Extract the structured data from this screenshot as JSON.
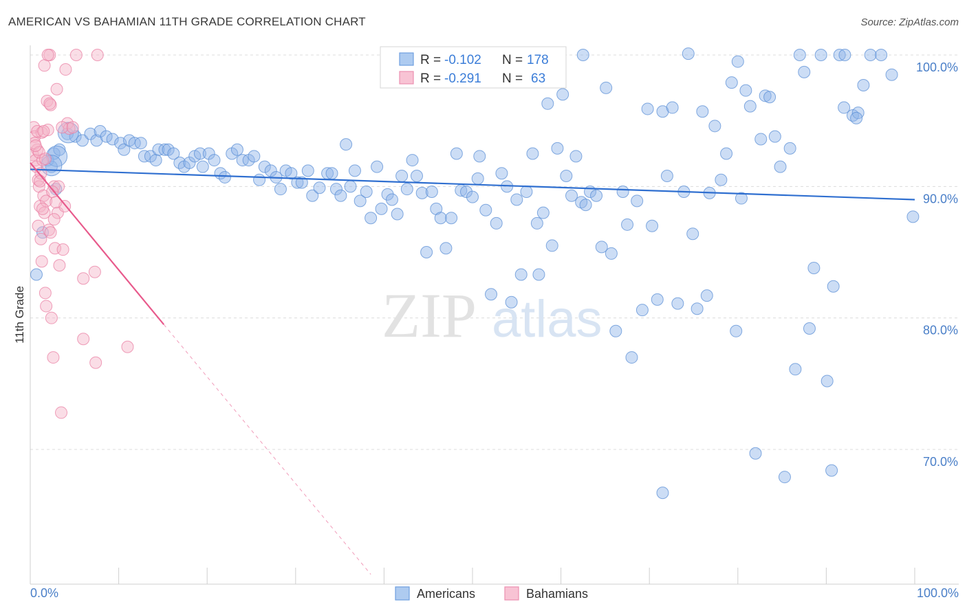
{
  "chart_data": {
    "type": "scatter",
    "title": "AMERICAN VS BAHAMIAN 11TH GRADE CORRELATION CHART",
    "source": "Source: ZipAtlas.com",
    "ylabel": "11th Grade",
    "xlabel": "",
    "xlim": [
      0,
      100
    ],
    "ylim": [
      60,
      101
    ],
    "x_tick_labels": [
      "0.0%",
      "100.0%"
    ],
    "y_ticks": [
      {
        "value": 100,
        "label": "100.0%"
      },
      {
        "value": 90,
        "label": "90.0%"
      },
      {
        "value": 80,
        "label": "80.0%"
      },
      {
        "value": 70,
        "label": "70.0%"
      }
    ],
    "watermark": {
      "zip": "ZIP",
      "atlas": "atlas"
    },
    "legend": {
      "rows": [
        {
          "r_label": "R =",
          "r_value": "-0.102",
          "n_label": "N =",
          "n_value": "178"
        },
        {
          "r_label": "R =",
          "r_value": "-0.291",
          "n_label": "N =",
          "n_value": "63"
        }
      ]
    },
    "series": [
      {
        "name": "Americans",
        "color": "#8fb4e8",
        "stroke": "#5b8fd6",
        "trend": {
          "x": [
            0,
            100
          ],
          "y": [
            91.3,
            89.0
          ],
          "color": "#2f6fd0"
        },
        "points": [
          [
            0.7,
            83.3
          ],
          [
            1.4,
            86.5
          ],
          [
            2.0,
            92.0
          ],
          [
            2.4,
            91.5
          ],
          [
            2.7,
            92.5
          ],
          [
            2.9,
            89.8
          ],
          [
            3.3,
            92.8
          ],
          [
            4.2,
            94.0
          ],
          [
            5.1,
            93.8
          ],
          [
            5.9,
            93.5
          ],
          [
            6.8,
            94.0
          ],
          [
            7.5,
            93.5
          ],
          [
            7.9,
            94.2
          ],
          [
            8.6,
            93.8
          ],
          [
            9.3,
            93.6
          ],
          [
            10.2,
            93.3
          ],
          [
            10.6,
            92.8
          ],
          [
            11.2,
            93.5
          ],
          [
            11.8,
            93.3
          ],
          [
            12.5,
            93.3
          ],
          [
            12.9,
            92.3
          ],
          [
            13.6,
            92.3
          ],
          [
            14.2,
            92.0
          ],
          [
            14.5,
            92.8
          ],
          [
            15.2,
            92.8
          ],
          [
            15.6,
            92.8
          ],
          [
            16.2,
            92.5
          ],
          [
            16.9,
            91.8
          ],
          [
            17.4,
            91.5
          ],
          [
            18.0,
            91.8
          ],
          [
            18.6,
            92.3
          ],
          [
            19.2,
            92.5
          ],
          [
            19.5,
            91.5
          ],
          [
            20.2,
            92.5
          ],
          [
            20.8,
            92.0
          ],
          [
            21.5,
            91.0
          ],
          [
            22.0,
            90.7
          ],
          [
            22.8,
            92.5
          ],
          [
            23.4,
            92.8
          ],
          [
            24.0,
            92.0
          ],
          [
            24.7,
            92.0
          ],
          [
            25.3,
            92.3
          ],
          [
            25.9,
            90.5
          ],
          [
            26.5,
            91.5
          ],
          [
            27.2,
            91.2
          ],
          [
            27.8,
            90.7
          ],
          [
            28.3,
            89.8
          ],
          [
            28.9,
            91.2
          ],
          [
            29.5,
            91.0
          ],
          [
            30.2,
            90.3
          ],
          [
            30.7,
            90.3
          ],
          [
            31.4,
            91.2
          ],
          [
            31.9,
            89.3
          ],
          [
            32.7,
            89.9
          ],
          [
            33.6,
            91.0
          ],
          [
            34.1,
            91.0
          ],
          [
            34.6,
            89.8
          ],
          [
            35.1,
            89.3
          ],
          [
            35.7,
            93.2
          ],
          [
            36.2,
            90.0
          ],
          [
            36.7,
            91.2
          ],
          [
            37.3,
            88.9
          ],
          [
            38.0,
            89.6
          ],
          [
            38.5,
            87.6
          ],
          [
            39.2,
            91.5
          ],
          [
            39.7,
            88.3
          ],
          [
            40.4,
            89.4
          ],
          [
            40.9,
            89.0
          ],
          [
            41.5,
            87.9
          ],
          [
            42.0,
            90.8
          ],
          [
            42.6,
            89.8
          ],
          [
            43.2,
            92.0
          ],
          [
            43.7,
            90.8
          ],
          [
            44.3,
            89.5
          ],
          [
            44.8,
            85.0
          ],
          [
            45.4,
            89.6
          ],
          [
            45.9,
            88.3
          ],
          [
            46.4,
            87.6
          ],
          [
            47.0,
            85.3
          ],
          [
            47.6,
            87.6
          ],
          [
            48.2,
            92.5
          ],
          [
            48.7,
            89.7
          ],
          [
            49.3,
            89.6
          ],
          [
            50.0,
            89.2
          ],
          [
            50.6,
            90.6
          ],
          [
            50.8,
            92.3
          ],
          [
            51.5,
            88.2
          ],
          [
            52.1,
            81.8
          ],
          [
            52.7,
            87.2
          ],
          [
            53.3,
            91.0
          ],
          [
            53.9,
            90.0
          ],
          [
            54.4,
            81.2
          ],
          [
            55.0,
            89.0
          ],
          [
            55.5,
            83.3
          ],
          [
            56.1,
            89.6
          ],
          [
            56.8,
            92.5
          ],
          [
            57.3,
            87.2
          ],
          [
            57.5,
            83.3
          ],
          [
            58.0,
            88.0
          ],
          [
            58.5,
            96.3
          ],
          [
            59.0,
            85.5
          ],
          [
            59.6,
            92.9
          ],
          [
            60.2,
            97.0
          ],
          [
            60.6,
            90.8
          ],
          [
            61.2,
            89.3
          ],
          [
            61.7,
            92.3
          ],
          [
            62.3,
            88.8
          ],
          [
            62.8,
            88.6
          ],
          [
            63.3,
            89.6
          ],
          [
            64.0,
            89.3
          ],
          [
            64.6,
            85.4
          ],
          [
            65.1,
            97.5
          ],
          [
            65.7,
            84.9
          ],
          [
            66.2,
            79.0
          ],
          [
            67.0,
            89.6
          ],
          [
            67.5,
            87.1
          ],
          [
            68.0,
            77.0
          ],
          [
            68.6,
            88.9
          ],
          [
            69.2,
            80.6
          ],
          [
            69.8,
            95.9
          ],
          [
            70.3,
            87.0
          ],
          [
            70.9,
            81.4
          ],
          [
            71.5,
            95.7
          ],
          [
            72.0,
            90.8
          ],
          [
            72.6,
            96.0
          ],
          [
            73.2,
            81.1
          ],
          [
            73.9,
            89.6
          ],
          [
            74.4,
            100.1
          ],
          [
            74.9,
            86.4
          ],
          [
            75.4,
            80.7
          ],
          [
            76.0,
            95.7
          ],
          [
            76.5,
            81.7
          ],
          [
            76.8,
            89.5
          ],
          [
            77.4,
            94.6
          ],
          [
            78.1,
            90.5
          ],
          [
            78.7,
            92.5
          ],
          [
            79.3,
            97.9
          ],
          [
            79.8,
            79.0
          ],
          [
            80.4,
            89.1
          ],
          [
            80.9,
            97.3
          ],
          [
            81.4,
            96.1
          ],
          [
            82.0,
            69.7
          ],
          [
            82.6,
            93.6
          ],
          [
            83.1,
            96.9
          ],
          [
            83.6,
            96.8
          ],
          [
            84.2,
            93.8
          ],
          [
            84.8,
            91.5
          ],
          [
            85.3,
            67.9
          ],
          [
            85.9,
            92.9
          ],
          [
            86.5,
            76.1
          ],
          [
            87.0,
            100.0
          ],
          [
            87.5,
            98.7
          ],
          [
            88.1,
            79.2
          ],
          [
            88.6,
            83.8
          ],
          [
            89.4,
            100.0
          ],
          [
            90.1,
            75.2
          ],
          [
            90.8,
            82.4
          ],
          [
            91.5,
            100.0
          ],
          [
            92.0,
            96.0
          ],
          [
            93.0,
            95.4
          ],
          [
            93.6,
            95.6
          ],
          [
            94.2,
            97.7
          ],
          [
            95.0,
            100.0
          ],
          [
            96.2,
            100.0
          ],
          [
            97.4,
            98.5
          ],
          [
            99.8,
            87.7
          ],
          [
            62.5,
            100.0
          ],
          [
            71.5,
            66.7
          ],
          [
            93.4,
            95.2
          ],
          [
            90.6,
            68.4
          ],
          [
            80.0,
            99.5
          ],
          [
            92.1,
            100.0
          ]
        ],
        "big_points": [
          [
            3.0,
            92.3
          ],
          [
            2.4,
            91.6
          ],
          [
            4.3,
            94.1
          ]
        ]
      },
      {
        "name": "Bahamians",
        "color": "#f5b3c8",
        "stroke": "#e97fa3",
        "trend": {
          "x": [
            0,
            15.1
          ],
          "y": [
            91.8,
            79.5
          ],
          "color": "#e85a8c"
        },
        "trend_ext": {
          "x": [
            15.1,
            38.5
          ],
          "y": [
            79.5,
            60.5
          ]
        },
        "points": [
          [
            0.3,
            92.4
          ],
          [
            0.4,
            94.5
          ],
          [
            0.5,
            93.8
          ],
          [
            0.6,
            92.0
          ],
          [
            0.7,
            91.5
          ],
          [
            0.8,
            92.8
          ],
          [
            0.9,
            90.5
          ],
          [
            1.0,
            90.0
          ],
          [
            1.1,
            88.5
          ],
          [
            1.2,
            86.0
          ],
          [
            1.3,
            84.3
          ],
          [
            1.3,
            94.1
          ],
          [
            1.4,
            92.0
          ],
          [
            1.5,
            89.3
          ],
          [
            1.6,
            88.0
          ],
          [
            1.6,
            99.2
          ],
          [
            1.7,
            81.9
          ],
          [
            1.8,
            88.9
          ],
          [
            1.9,
            96.5
          ],
          [
            2.0,
            94.3
          ],
          [
            2.1,
            86.7
          ],
          [
            2.2,
            100.0
          ],
          [
            2.3,
            96.2
          ],
          [
            2.4,
            80.0
          ],
          [
            2.6,
            77.0
          ],
          [
            2.7,
            90.0
          ],
          [
            2.8,
            85.3
          ],
          [
            3.0,
            97.4
          ],
          [
            3.1,
            88.0
          ],
          [
            3.2,
            90.0
          ],
          [
            3.3,
            84.0
          ],
          [
            3.5,
            72.8
          ],
          [
            3.7,
            85.2
          ],
          [
            3.9,
            88.5
          ],
          [
            4.0,
            98.9
          ],
          [
            4.2,
            94.8
          ],
          [
            4.4,
            94.4
          ],
          [
            5.2,
            100.0
          ],
          [
            6.0,
            78.4
          ],
          [
            6.0,
            83.0
          ],
          [
            7.3,
            83.5
          ],
          [
            7.4,
            76.6
          ],
          [
            7.6,
            100.0
          ],
          [
            11.0,
            77.8
          ],
          [
            0.5,
            93.3
          ],
          [
            0.8,
            94.2
          ],
          [
            1.0,
            92.6
          ],
          [
            1.2,
            91.0
          ],
          [
            1.5,
            94.2
          ],
          [
            1.7,
            92.1
          ],
          [
            2.0,
            100.0
          ],
          [
            2.2,
            96.3
          ],
          [
            2.5,
            89.6
          ],
          [
            0.9,
            87.0
          ],
          [
            1.8,
            80.9
          ],
          [
            2.9,
            88.8
          ],
          [
            3.6,
            94.5
          ],
          [
            0.6,
            93.1
          ],
          [
            1.1,
            90.4
          ],
          [
            2.7,
            87.5
          ],
          [
            4.8,
            94.5
          ],
          [
            1.4,
            88.3
          ],
          [
            2.3,
            86.5
          ]
        ]
      }
    ]
  }
}
